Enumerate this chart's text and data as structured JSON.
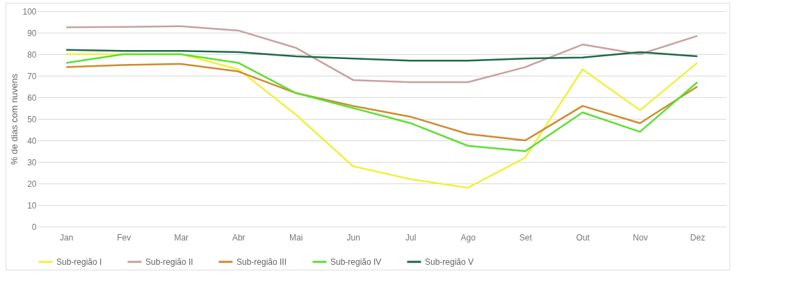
{
  "chart_data": {
    "type": "line",
    "ylabel": "% de dias com nuvens",
    "categories": [
      "Jan",
      "Fev",
      "Mar",
      "Abr",
      "Mai",
      "Jun",
      "Jul",
      "Ago",
      "Set",
      "Out",
      "Nov",
      "Dez"
    ],
    "series": [
      {
        "name": "Sub-região I",
        "color": "#f2f03c",
        "values": [
          80,
          80,
          80,
          73,
          52,
          28,
          22,
          18,
          32,
          73,
          54,
          76
        ]
      },
      {
        "name": "Sub-região II",
        "color": "#c9a0a0",
        "values": [
          92.5,
          92.7,
          93,
          91,
          83,
          68,
          67,
          67,
          74,
          84.5,
          80,
          88.5
        ]
      },
      {
        "name": "Sub-região III",
        "color": "#d08a2c",
        "values": [
          74,
          75,
          75.5,
          72,
          62,
          56,
          51,
          43,
          40,
          56,
          48,
          65
        ]
      },
      {
        "name": "Sub-região IV",
        "color": "#5ce030",
        "values": [
          76,
          80,
          80,
          76,
          62,
          55,
          48,
          37.5,
          35,
          53,
          44,
          67
        ]
      },
      {
        "name": "Sub-região V",
        "color": "#1e6a4a",
        "values": [
          82,
          81.5,
          81.5,
          81,
          79,
          78,
          77,
          77,
          78,
          78.5,
          81,
          79
        ]
      }
    ],
    "ylim": [
      0,
      100
    ],
    "yticks": [
      0,
      10,
      20,
      30,
      40,
      50,
      60,
      70,
      80,
      90,
      100
    ],
    "grid": "y",
    "legend": "bottom",
    "line_style": "solid",
    "marker": "none"
  }
}
